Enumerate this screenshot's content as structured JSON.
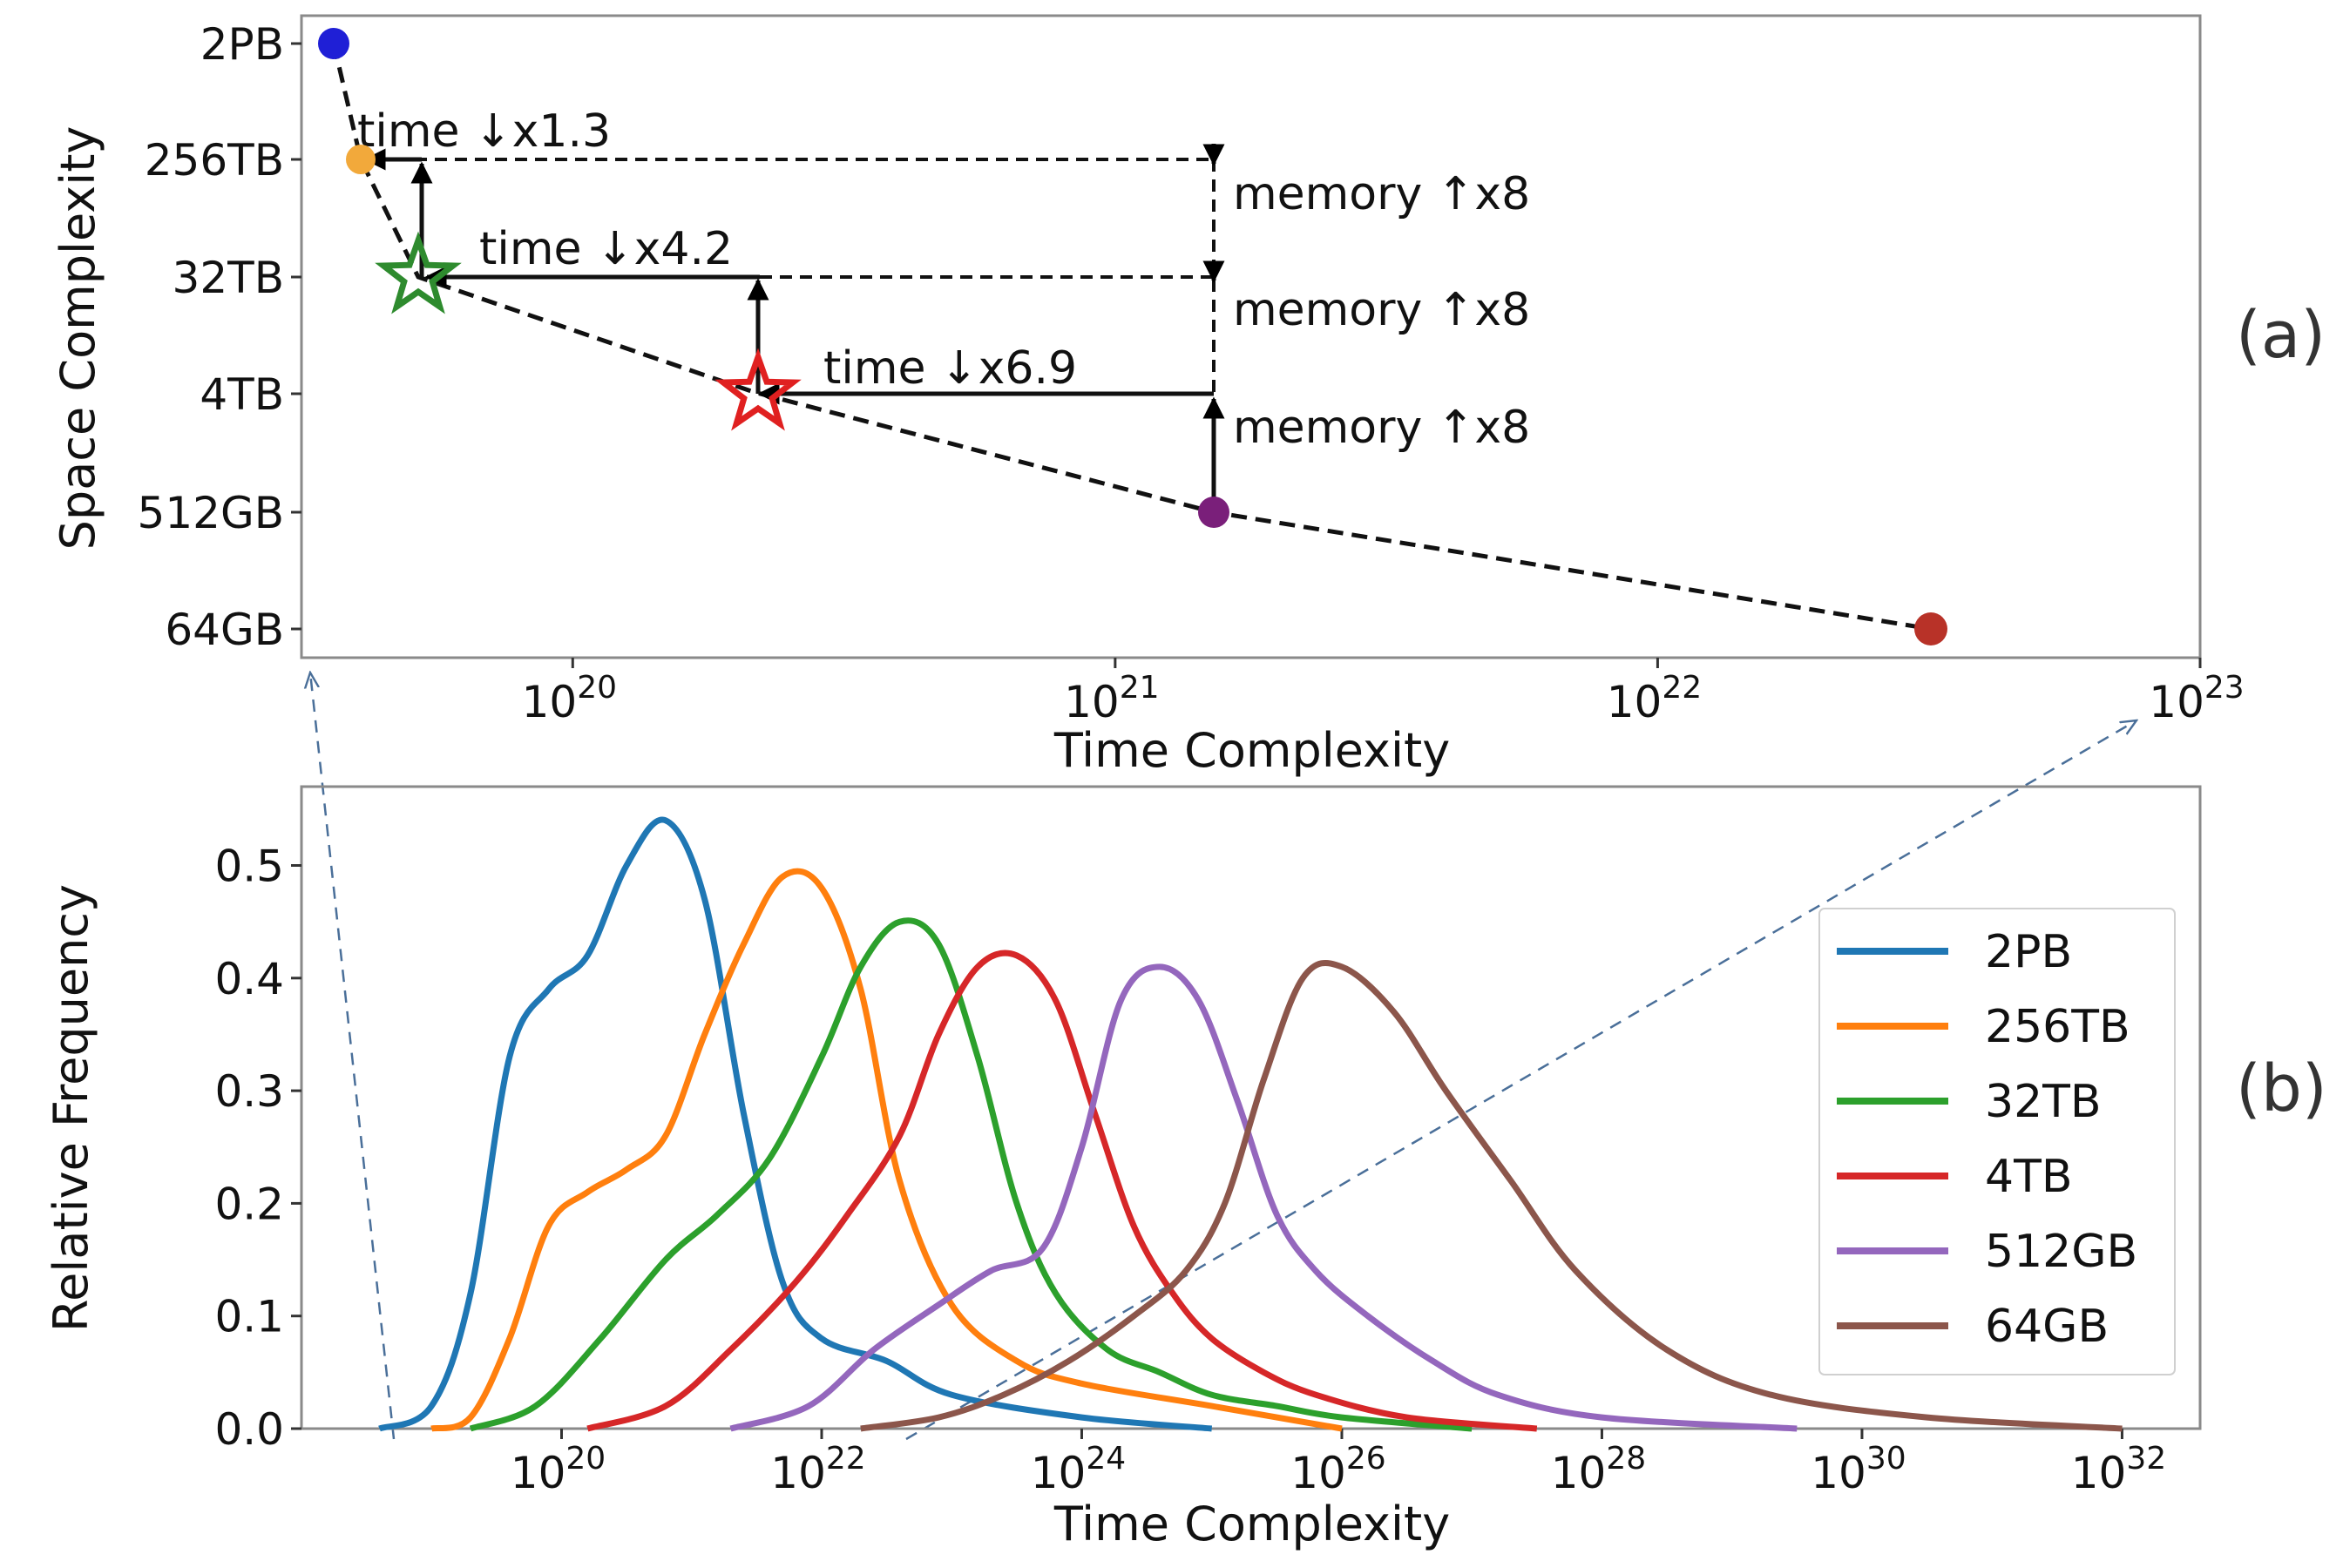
{
  "figure": {
    "panel_a_label": "(a)",
    "panel_b_label": "(b)"
  },
  "chart_data": [
    {
      "type": "scatter",
      "panel": "(a)",
      "xlabel": "Time Complexity",
      "ylabel": "Space Complexity",
      "xscale": "log",
      "xlim_log10": [
        19.5,
        23.0
      ],
      "x_ticks": [
        {
          "exp": 20,
          "base": "10",
          "sup": "20"
        },
        {
          "exp": 21,
          "base": "10",
          "sup": "21"
        },
        {
          "exp": 22,
          "base": "10",
          "sup": "22"
        },
        {
          "exp": 23,
          "base": "10",
          "sup": "23"
        }
      ],
      "y_ticks": [
        "2PB",
        "256TB",
        "32TB",
        "4TB",
        "512GB",
        "64GB"
      ],
      "points": [
        {
          "label": "2PB",
          "log10_time": 19.55,
          "color": "#1f1fd6",
          "marker": "circle"
        },
        {
          "label": "256TB",
          "log10_time": 19.6,
          "color": "#f2a93b",
          "marker": "circle"
        },
        {
          "label": "32TB",
          "log10_time": 19.72,
          "color": "#2e8b2e",
          "marker": "star"
        },
        {
          "label": "4TB",
          "log10_time": 20.34,
          "color": "#e02020",
          "marker": "star"
        },
        {
          "label": "512GB",
          "log10_time": 21.18,
          "color": "#7a1f7a",
          "marker": "circle"
        },
        {
          "label": "64GB",
          "log10_time": 22.5,
          "color": "#b83228",
          "marker": "circle"
        }
      ],
      "annotations": [
        {
          "text": "time ↓x1.3"
        },
        {
          "text": "time ↓x4.2"
        },
        {
          "text": "time ↓x6.9"
        },
        {
          "text": "memory ↑x8"
        },
        {
          "text": "memory ↑x8"
        },
        {
          "text": "memory ↑x8"
        }
      ]
    },
    {
      "type": "line",
      "panel": "(b)",
      "xlabel": "Time Complexity",
      "ylabel": "Relative Frequency",
      "xscale": "log",
      "xlim_log10": [
        18.0,
        32.6
      ],
      "ylim": [
        0.0,
        0.57
      ],
      "x_ticks": [
        {
          "exp": 20,
          "base": "10",
          "sup": "20"
        },
        {
          "exp": 22,
          "base": "10",
          "sup": "22"
        },
        {
          "exp": 24,
          "base": "10",
          "sup": "24"
        },
        {
          "exp": 26,
          "base": "10",
          "sup": "26"
        },
        {
          "exp": 28,
          "base": "10",
          "sup": "28"
        },
        {
          "exp": 30,
          "base": "10",
          "sup": "30"
        },
        {
          "exp": 32,
          "base": "10",
          "sup": "32"
        }
      ],
      "y_ticks": [
        "0.0",
        "0.1",
        "0.2",
        "0.3",
        "0.4",
        "0.5"
      ],
      "y_tick_values": [
        0.0,
        0.1,
        0.2,
        0.3,
        0.4,
        0.5
      ],
      "legend_position": "right",
      "series": [
        {
          "name": "2PB",
          "color": "#1f77b4",
          "x": [
            18.6,
            19.0,
            19.3,
            19.6,
            19.9,
            20.2,
            20.5,
            20.8,
            21.1,
            21.4,
            21.7,
            22.0,
            22.5,
            23.0,
            24.0,
            25.0
          ],
          "y": [
            0.0,
            0.02,
            0.12,
            0.33,
            0.39,
            0.42,
            0.5,
            0.54,
            0.47,
            0.28,
            0.13,
            0.08,
            0.06,
            0.03,
            0.01,
            0.0
          ]
        },
        {
          "name": "256TB",
          "color": "#ff7f0e",
          "x": [
            19.0,
            19.3,
            19.6,
            19.9,
            20.2,
            20.5,
            20.8,
            21.1,
            21.4,
            21.7,
            22.0,
            22.3,
            22.6,
            23.0,
            23.5,
            24.0,
            25.0,
            26.0
          ],
          "y": [
            0.0,
            0.01,
            0.08,
            0.18,
            0.21,
            0.23,
            0.26,
            0.35,
            0.43,
            0.49,
            0.48,
            0.39,
            0.22,
            0.11,
            0.06,
            0.04,
            0.02,
            0.0
          ]
        },
        {
          "name": "32TB",
          "color": "#2ca02c",
          "x": [
            19.3,
            19.8,
            20.3,
            20.8,
            21.2,
            21.6,
            22.0,
            22.3,
            22.6,
            22.9,
            23.2,
            23.5,
            23.8,
            24.2,
            24.6,
            25.0,
            25.5,
            26.0,
            27.0
          ],
          "y": [
            0.0,
            0.02,
            0.08,
            0.15,
            0.19,
            0.24,
            0.33,
            0.41,
            0.45,
            0.43,
            0.33,
            0.2,
            0.12,
            0.07,
            0.05,
            0.03,
            0.02,
            0.01,
            0.0
          ]
        },
        {
          "name": "4TB",
          "color": "#d62728",
          "x": [
            20.2,
            20.8,
            21.3,
            21.8,
            22.2,
            22.6,
            22.9,
            23.2,
            23.5,
            23.8,
            24.1,
            24.4,
            24.7,
            25.0,
            25.4,
            25.8,
            26.5,
            27.5
          ],
          "y": [
            0.0,
            0.02,
            0.07,
            0.13,
            0.19,
            0.26,
            0.35,
            0.41,
            0.42,
            0.38,
            0.28,
            0.18,
            0.12,
            0.08,
            0.05,
            0.03,
            0.01,
            0.0
          ]
        },
        {
          "name": "512GB",
          "color": "#9467bd",
          "x": [
            21.3,
            21.9,
            22.4,
            22.9,
            23.3,
            23.7,
            24.0,
            24.3,
            24.6,
            24.9,
            25.2,
            25.5,
            25.8,
            26.2,
            26.7,
            27.2,
            28.0,
            29.5
          ],
          "y": [
            0.0,
            0.02,
            0.07,
            0.11,
            0.14,
            0.16,
            0.25,
            0.38,
            0.41,
            0.38,
            0.29,
            0.19,
            0.14,
            0.1,
            0.06,
            0.03,
            0.01,
            0.0
          ]
        },
        {
          "name": "64GB",
          "color": "#8c564b",
          "x": [
            22.3,
            22.9,
            23.4,
            23.9,
            24.4,
            24.8,
            25.1,
            25.4,
            25.7,
            26.0,
            26.4,
            26.8,
            27.3,
            27.8,
            28.5,
            29.3,
            30.5,
            32.0
          ],
          "y": [
            0.0,
            0.01,
            0.03,
            0.06,
            0.1,
            0.14,
            0.2,
            0.31,
            0.4,
            0.41,
            0.37,
            0.3,
            0.22,
            0.14,
            0.07,
            0.03,
            0.01,
            0.0
          ]
        }
      ]
    }
  ]
}
